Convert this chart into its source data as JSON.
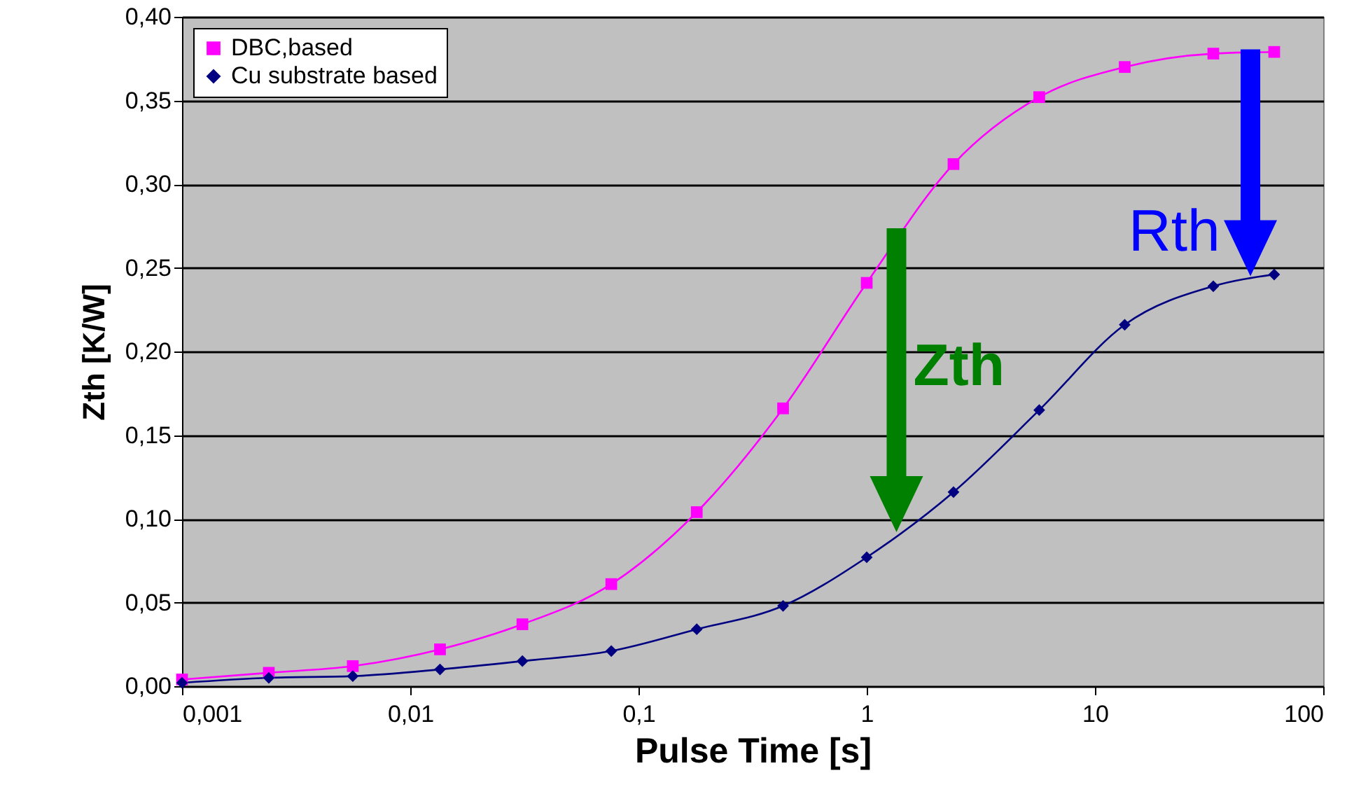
{
  "chart_data": {
    "type": "line",
    "xlabel": "Pulse Time [s]",
    "ylabel": "Zth [K/W]",
    "log": "x",
    "x": [
      0.001,
      0.0024,
      0.0056,
      0.0135,
      0.031,
      0.076,
      0.18,
      0.43,
      1.0,
      2.4,
      5.7,
      13.5,
      33,
      61
    ],
    "series": [
      {
        "name": "DBC,based",
        "color": "#ff00ff",
        "marker": "square",
        "values": [
          0.004,
          0.008,
          0.012,
          0.022,
          0.037,
          0.061,
          0.104,
          0.166,
          0.241,
          0.312,
          0.352,
          0.37,
          0.378,
          0.379
        ]
      },
      {
        "name": "Cu substrate based",
        "color": "#000080",
        "marker": "diamond",
        "values": [
          0.002,
          0.005,
          0.006,
          0.01,
          0.015,
          0.021,
          0.034,
          0.048,
          0.077,
          0.116,
          0.165,
          0.216,
          0.239,
          0.246
        ]
      }
    ],
    "xlim": [
      0.001,
      100
    ],
    "xticks": [
      {
        "value": 0.001,
        "label": "0,001"
      },
      {
        "value": 0.01,
        "label": "0,01"
      },
      {
        "value": 0.1,
        "label": "0,1"
      },
      1,
      10,
      100
    ],
    "ylim": [
      0,
      0.4
    ],
    "yticks": [
      {
        "value": 0,
        "label": "0,00"
      },
      {
        "value": 0.05,
        "label": "0,05"
      },
      {
        "value": 0.1,
        "label": "0,10"
      },
      {
        "value": 0.15,
        "label": "0,15"
      },
      {
        "value": 0.2,
        "label": "0,20"
      },
      {
        "value": 0.25,
        "label": "0,25"
      },
      {
        "value": 0.3,
        "label": "0,30"
      },
      {
        "value": 0.35,
        "label": "0,35"
      },
      {
        "value": 0.4,
        "label": "0,40"
      }
    ],
    "annotations": [
      {
        "text": "Zth",
        "x": 1.35,
        "y": 0.092
      },
      {
        "text": "Rth",
        "x": 48,
        "y": 0.245
      }
    ],
    "grid": "y",
    "legend": "top left"
  }
}
